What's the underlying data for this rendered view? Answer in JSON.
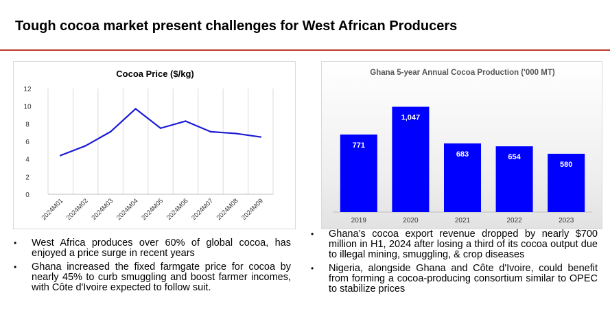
{
  "page": {
    "title": "Tough cocoa market present challenges for West African Producers"
  },
  "colors": {
    "accent_rule": "#c0392b",
    "line": "#1a1ad6",
    "bar": "#0000ff"
  },
  "chart_data": [
    {
      "type": "line",
      "title": "Cocoa Price ($/kg)",
      "categories": [
        "2024M01",
        "2024M02",
        "2024M03",
        "2024M04",
        "2024M05",
        "2024M06",
        "2024M07",
        "2024M08",
        "2024M09"
      ],
      "values": [
        4.4,
        5.5,
        7.1,
        9.7,
        7.5,
        8.3,
        7.1,
        6.9,
        6.5
      ],
      "ylim": [
        0,
        12
      ],
      "yticks": [
        "0",
        "2",
        "4",
        "6",
        "8",
        "10",
        "12"
      ],
      "grid": "vertical"
    },
    {
      "type": "bar",
      "title": "Ghana 5-year Annual Cocoa Production ('000 MT)",
      "categories": [
        "2019",
        "2020",
        "2021",
        "2022",
        "2023"
      ],
      "values": [
        771,
        1047,
        683,
        654,
        580
      ],
      "data_labels": [
        "771",
        "1,047",
        "683",
        "654",
        "580"
      ],
      "ylim": [
        0,
        1160
      ]
    }
  ],
  "bullets_left": [
    "West Africa produces over 60% of global cocoa, has enjoyed a price surge in recent years",
    "Ghana increased the fixed farmgate price for cocoa by nearly 45% to curb smuggling and boost farmer incomes, with Côte d'Ivoire expected to follow suit."
  ],
  "bullets_right": [
    "Ghana’s cocoa export revenue dropped by nearly $700 million in H1, 2024 after losing a third of its cocoa output due to illegal mining, smuggling, & crop diseases",
    "Nigeria, alongside Ghana and Côte d'Ivoire, could benefit from forming a cocoa-producing consortium similar to OPEC to stabilize prices"
  ]
}
